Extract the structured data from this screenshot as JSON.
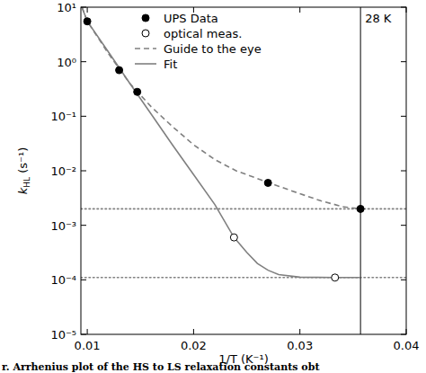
{
  "chart_data": {
    "type": "scatter",
    "xlabel": "1/T (K⁻¹)",
    "ylabel": "kHL (s⁻¹)",
    "caption": "r. Arrhenius plot of the HS to LS relaxation constants obt",
    "log": "y",
    "legend": "upper center",
    "xlim": [
      0.0094,
      0.04
    ],
    "ylim": [
      1e-05,
      10
    ],
    "xticks": [
      0.01,
      0.02,
      0.03,
      0.04
    ],
    "yticks": [
      {
        "value": 10,
        "label": "10¹"
      },
      {
        "value": 1,
        "label": "10⁰"
      },
      {
        "value": 0.1,
        "label": "10⁻¹"
      },
      {
        "value": 0.01,
        "label": "10⁻²"
      },
      {
        "value": 0.001,
        "label": "10⁻³"
      },
      {
        "value": 0.0001,
        "label": "10⁻⁴"
      },
      {
        "value": 1e-05,
        "label": "10⁻⁵"
      }
    ],
    "hlines": [
      0.002,
      0.00011
    ],
    "vline": {
      "value": 0.0357,
      "label": "28 K"
    },
    "series": [
      {
        "name": "UPS Data",
        "type": "scatter",
        "marker": "filled",
        "color": "#000000",
        "x": [
          0.01,
          0.013,
          0.0147,
          0.027,
          0.0357
        ],
        "values": [
          5.5,
          0.7,
          0.28,
          0.006,
          0.002
        ]
      },
      {
        "name": "optical meas.",
        "type": "scatter",
        "marker": "open",
        "color": "#000000",
        "x": [
          0.0238,
          0.0333
        ],
        "values": [
          0.0006,
          0.00011
        ]
      },
      {
        "name": "Guide to the eye",
        "type": "line",
        "line_style": "dashed",
        "color": "#808080",
        "x": [
          0.0095,
          0.01,
          0.012,
          0.014,
          0.016,
          0.018,
          0.02,
          0.022,
          0.024,
          0.026,
          0.028,
          0.03,
          0.032,
          0.034,
          0.0357
        ],
        "values": [
          10,
          5.5,
          1.4,
          0.4,
          0.15,
          0.065,
          0.03,
          0.016,
          0.01,
          0.0072,
          0.0052,
          0.0038,
          0.0028,
          0.0022,
          0.002
        ]
      },
      {
        "name": "Fit",
        "type": "line",
        "line_style": "solid",
        "color": "#808080",
        "x": [
          0.0095,
          0.01,
          0.012,
          0.014,
          0.016,
          0.018,
          0.02,
          0.022,
          0.0238,
          0.025,
          0.026,
          0.027,
          0.028,
          0.03,
          0.0333,
          0.0357
        ],
        "values": [
          10,
          5.5,
          1.5,
          0.4,
          0.11,
          0.03,
          0.0085,
          0.0024,
          0.0006,
          0.00032,
          0.0002,
          0.00015,
          0.000125,
          0.000112,
          0.00011,
          0.00011
        ]
      }
    ]
  }
}
